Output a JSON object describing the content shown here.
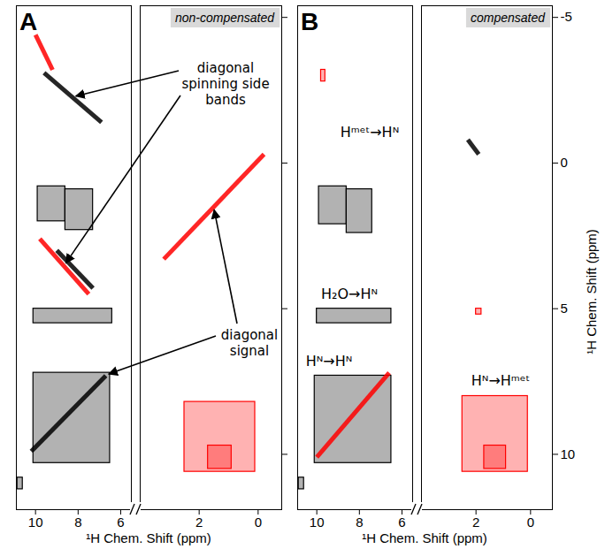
{
  "chart_data": [
    {
      "type": "contour",
      "title": "A",
      "subtitle": "non-compensated",
      "x_label": "¹H Chem. Shift (ppm)",
      "xlim": [
        [
          10.9,
          5.5
        ],
        [
          4.0,
          -0.8
        ]
      ],
      "xticks": [
        [
          10,
          8,
          6
        ],
        [
          2,
          0
        ]
      ],
      "ylim": [
        11.9,
        -5.4
      ],
      "yticks": [
        -5,
        0,
        5,
        10
      ],
      "tick_labels": "x",
      "peaks": [
        {
          "x": [
            9.9,
            8.6
          ],
          "y": [
            0.8,
            2.0
          ],
          "color": "#000000"
        },
        {
          "x": [
            8.6,
            7.3
          ],
          "y": [
            0.9,
            2.3
          ],
          "color": "#000000"
        },
        {
          "x": [
            10.1,
            6.4
          ],
          "y": [
            5.0,
            5.5
          ],
          "color": "#000000"
        },
        {
          "x": [
            10.1,
            6.5
          ],
          "y": [
            7.2,
            10.3
          ],
          "color": "#000000"
        },
        {
          "x": [
            10.85,
            10.6
          ],
          "y": [
            10.8,
            11.2
          ],
          "color": "#000000"
        },
        {
          "x": [
            2.5,
            0.1
          ],
          "y": [
            8.2,
            10.6
          ],
          "color": "#ff0000"
        },
        {
          "x": [
            1.7,
            0.9
          ],
          "y": [
            9.7,
            10.5
          ],
          "color": "#ff0000"
        }
      ],
      "lines": [
        {
          "x": [
            9.6,
            6.9
          ],
          "y": [
            -3.1,
            -1.4
          ],
          "color": "#000000"
        },
        {
          "x": [
            10.0,
            9.2
          ],
          "y": [
            -4.4,
            -3.2
          ],
          "color": "#ff0000"
        },
        {
          "x": [
            9.8,
            7.5
          ],
          "y": [
            2.6,
            4.5
          ],
          "color": "#ff0000"
        },
        {
          "x": [
            9.0,
            7.3
          ],
          "y": [
            3.0,
            4.3
          ],
          "color": "#000000"
        },
        {
          "x": [
            10.2,
            6.7
          ],
          "y": [
            9.9,
            7.3
          ],
          "color": "#000000"
        },
        {
          "x": [
            3.2,
            -0.2
          ],
          "y": [
            3.3,
            -0.3
          ],
          "color": "#ff0000"
        }
      ],
      "annotations": [
        "diagonal spinning side bands",
        "diagonal signal"
      ]
    },
    {
      "type": "contour",
      "title": "B",
      "subtitle": "compensated",
      "x_label": "¹H Chem. Shift (ppm)",
      "y_label": "¹H Chem. Shift (ppm)",
      "xlim": [
        [
          10.9,
          5.5
        ],
        [
          4.0,
          -0.8
        ]
      ],
      "xticks": [
        [
          10,
          8,
          6
        ],
        [
          2,
          0
        ]
      ],
      "ylim": [
        11.9,
        -5.4
      ],
      "yticks": [
        -5,
        0,
        5,
        10
      ],
      "peaks": [
        {
          "x": [
            9.9,
            8.6
          ],
          "y": [
            0.8,
            2.1
          ],
          "color": "#000000"
        },
        {
          "x": [
            8.6,
            7.4
          ],
          "y": [
            0.9,
            2.4
          ],
          "color": "#000000"
        },
        {
          "x": [
            10.0,
            6.5
          ],
          "y": [
            5.0,
            5.5
          ],
          "color": "#000000"
        },
        {
          "x": [
            10.1,
            6.5
          ],
          "y": [
            7.3,
            10.3
          ],
          "color": "#000000"
        },
        {
          "x": [
            10.85,
            10.6
          ],
          "y": [
            10.8,
            11.2
          ],
          "color": "#000000"
        },
        {
          "x": [
            9.8,
            9.6
          ],
          "y": [
            -3.2,
            -2.8
          ],
          "color": "#ff0000"
        },
        {
          "x": [
            2.5,
            0.1
          ],
          "y": [
            8.0,
            10.6
          ],
          "color": "#ff0000"
        },
        {
          "x": [
            1.7,
            0.9
          ],
          "y": [
            9.7,
            10.5
          ],
          "color": "#ff0000"
        },
        {
          "x": [
            2.0,
            1.8
          ],
          "y": [
            5.0,
            5.2
          ],
          "color": "#ff0000"
        }
      ],
      "lines": [
        {
          "x": [
            10.0,
            6.6
          ],
          "y": [
            10.1,
            7.2
          ],
          "color": "#ff0000"
        },
        {
          "x": [
            2.3,
            1.9
          ],
          "y": [
            -0.8,
            -0.3
          ],
          "color": "#000000"
        }
      ],
      "annotations": [
        "Hᵐᵉᵗ→Hᴺ",
        "H₂O→Hᴺ",
        "Hᴺ→Hᴺ",
        "Hᴺ→Hᵐᵉᵗ"
      ]
    }
  ]
}
